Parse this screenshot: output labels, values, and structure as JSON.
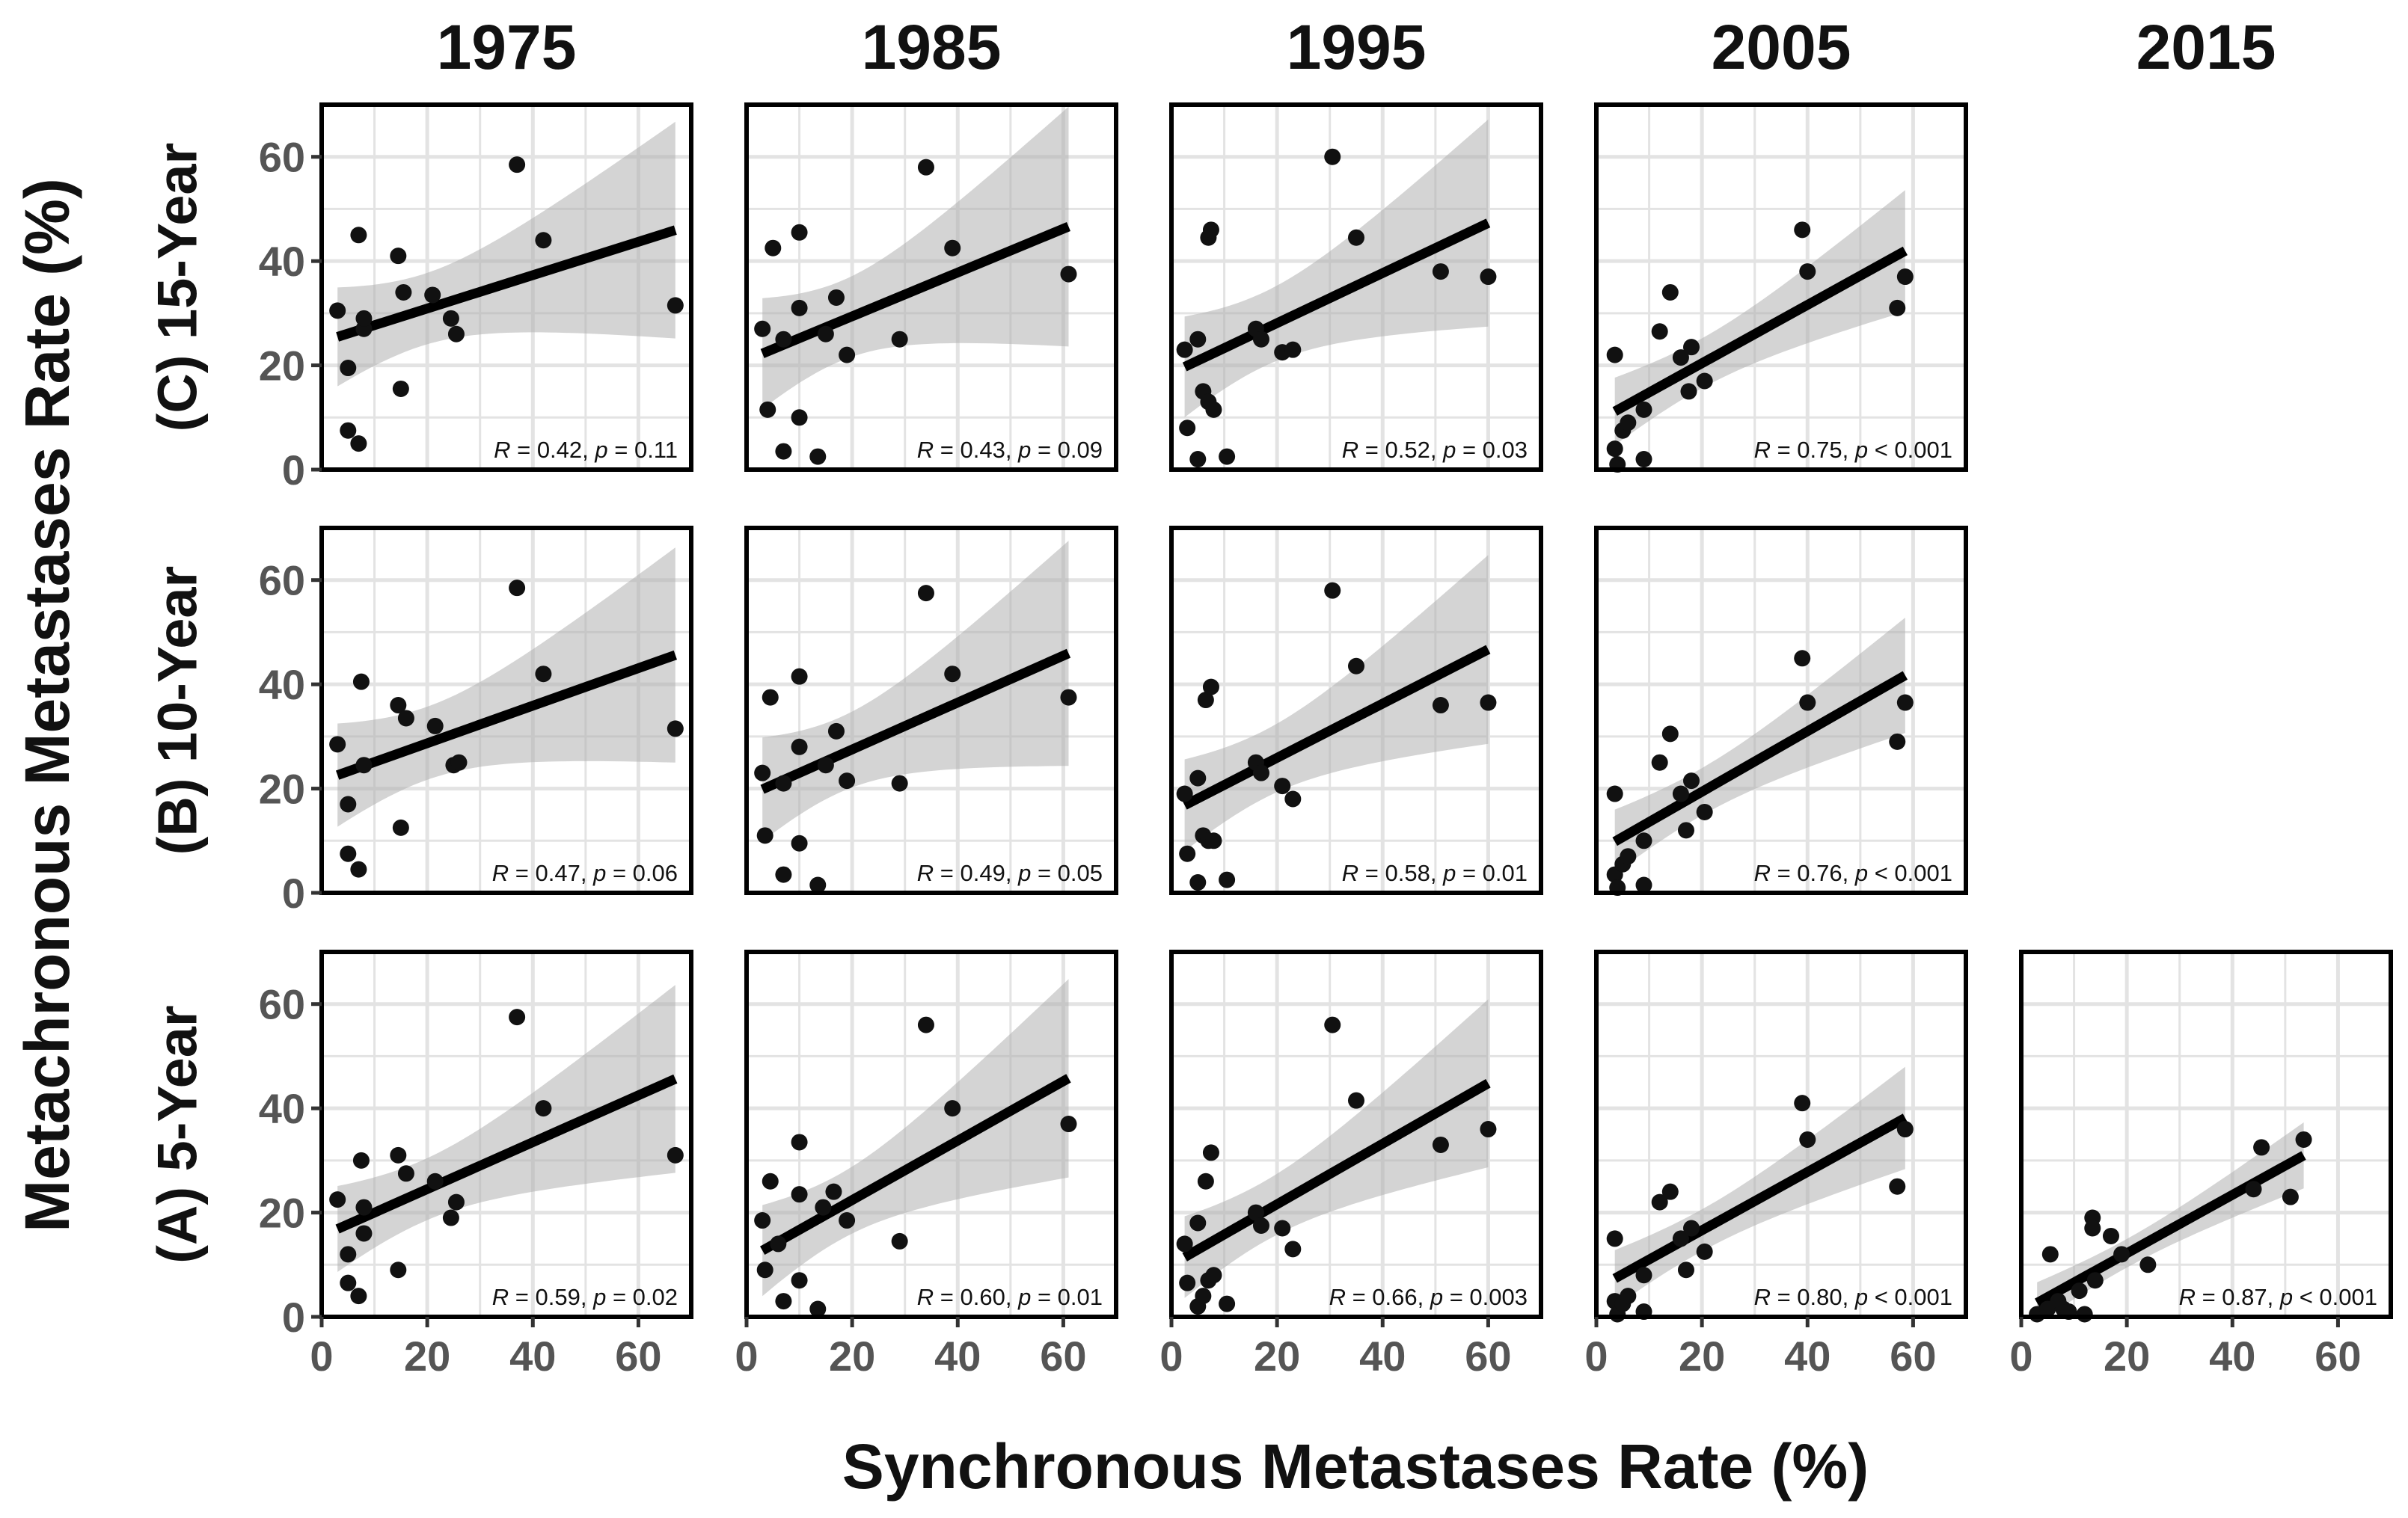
{
  "chart_data": {
    "type": "scatter",
    "xlabel": "Synchronous Metastases Rate (%)",
    "ylabel": "Metachronous Metastases Rate (%)",
    "xlim": [
      0,
      70
    ],
    "ylim": [
      0,
      70
    ],
    "x_ticks": [
      0,
      20,
      40,
      60
    ],
    "y_ticks": [
      0,
      20,
      40,
      60
    ],
    "x_tick_labels": [
      "0",
      "20",
      "40",
      "60"
    ],
    "y_tick_labels": [
      "0",
      "20",
      "40",
      "60"
    ],
    "grid": true,
    "fit": "linear regression with shaded confidence band",
    "columns": [
      "1975",
      "1985",
      "1995",
      "2005",
      "2015"
    ],
    "rows": [
      "(C) 15-Year",
      "(B) 10-Year",
      "(A) 5-Year"
    ],
    "panels": [
      {
        "row": "(C) 15-Year",
        "year": "1975",
        "r": "0.42",
        "p_op": "=",
        "p": "0.11",
        "fit": [
          24.5,
          0.32
        ],
        "points": [
          [
            3,
            30.5
          ],
          [
            5,
            7.5
          ],
          [
            5,
            19.5
          ],
          [
            7,
            5
          ],
          [
            7,
            45
          ],
          [
            8,
            27
          ],
          [
            8,
            29
          ],
          [
            14.5,
            41
          ],
          [
            15.5,
            34
          ],
          [
            15,
            15.5
          ],
          [
            21,
            33.5
          ],
          [
            24.5,
            29
          ],
          [
            25.5,
            26
          ],
          [
            42,
            44
          ],
          [
            37,
            58.5
          ],
          [
            67,
            31.5
          ]
        ]
      },
      {
        "row": "(C) 15-Year",
        "year": "1985",
        "r": "0.43",
        "p_op": "=",
        "p": "0.09",
        "fit": [
          21,
          0.42
        ],
        "points": [
          [
            3,
            27
          ],
          [
            4,
            11.5
          ],
          [
            5,
            42.5
          ],
          [
            7,
            25
          ],
          [
            7,
            3.5
          ],
          [
            10,
            45.5
          ],
          [
            10,
            31
          ],
          [
            10,
            10
          ],
          [
            13.5,
            2.5
          ],
          [
            15,
            26
          ],
          [
            17,
            33
          ],
          [
            19,
            22
          ],
          [
            29,
            25
          ],
          [
            34,
            58
          ],
          [
            39,
            42.5
          ],
          [
            61,
            37.5
          ]
        ]
      },
      {
        "row": "(C) 15-Year",
        "year": "1995",
        "r": "0.52",
        "p_op": "=",
        "p": "0.03",
        "fit": [
          18.5,
          0.48
        ],
        "points": [
          [
            2.5,
            23
          ],
          [
            3,
            8
          ],
          [
            5,
            25
          ],
          [
            5,
            2
          ],
          [
            6,
            15
          ],
          [
            7,
            44.5
          ],
          [
            7.5,
            46
          ],
          [
            7,
            13
          ],
          [
            8,
            11.5
          ],
          [
            10.5,
            2.5
          ],
          [
            16,
            27
          ],
          [
            17,
            25
          ],
          [
            21,
            22.5
          ],
          [
            23,
            23
          ],
          [
            30.5,
            60
          ],
          [
            35,
            44.5
          ],
          [
            51,
            38
          ],
          [
            60,
            37
          ]
        ]
      },
      {
        "row": "(C) 15-Year",
        "year": "2005",
        "r": "0.75",
        "p_op": "<",
        "p": "0.001",
        "fit": [
          9.2,
          0.56
        ],
        "points": [
          [
            3.5,
            22
          ],
          [
            3.5,
            4
          ],
          [
            4,
            1
          ],
          [
            5,
            7.5
          ],
          [
            6,
            9
          ],
          [
            9,
            2
          ],
          [
            9,
            11.5
          ],
          [
            12,
            26.5
          ],
          [
            14,
            34
          ],
          [
            16,
            21.5
          ],
          [
            17.5,
            15
          ],
          [
            18,
            23.5
          ],
          [
            20.5,
            17
          ],
          [
            39,
            46
          ],
          [
            40,
            38
          ],
          [
            57,
            31
          ],
          [
            58.5,
            37
          ]
        ]
      },
      {
        "row": "(B) 10-Year",
        "year": "1975",
        "r": "0.47",
        "p_op": "=",
        "p": "0.06",
        "fit": [
          21.5,
          0.36
        ],
        "points": [
          [
            3,
            28.5
          ],
          [
            5,
            17
          ],
          [
            5,
            7.5
          ],
          [
            7,
            4.5
          ],
          [
            7.5,
            40.5
          ],
          [
            8,
            24.5
          ],
          [
            14.5,
            36
          ],
          [
            15,
            12.5
          ],
          [
            16,
            33.5
          ],
          [
            21.5,
            32
          ],
          [
            25,
            24.5
          ],
          [
            26,
            25
          ],
          [
            42,
            42
          ],
          [
            37,
            58.5
          ],
          [
            67,
            31.5
          ]
        ]
      },
      {
        "row": "(B) 10-Year",
        "year": "1985",
        "r": "0.49",
        "p_op": "=",
        "p": "0.05",
        "fit": [
          18.5,
          0.45
        ],
        "points": [
          [
            3,
            23
          ],
          [
            3.5,
            11
          ],
          [
            4.5,
            37.5
          ],
          [
            7,
            3.5
          ],
          [
            7,
            21
          ],
          [
            10,
            41.5
          ],
          [
            10,
            28
          ],
          [
            10,
            9.5
          ],
          [
            13.5,
            1.5
          ],
          [
            15,
            24.5
          ],
          [
            17,
            31
          ],
          [
            19,
            21.5
          ],
          [
            29,
            21
          ],
          [
            34,
            57.5
          ],
          [
            39,
            42
          ],
          [
            61,
            37.5
          ]
        ]
      },
      {
        "row": "(B) 10-Year",
        "year": "1995",
        "r": "0.58",
        "p_op": "=",
        "p": "0.01",
        "fit": [
          15.5,
          0.52
        ],
        "points": [
          [
            2.5,
            19
          ],
          [
            3,
            7.5
          ],
          [
            5,
            22
          ],
          [
            5,
            2
          ],
          [
            6,
            11
          ],
          [
            6.5,
            37
          ],
          [
            7.5,
            39.5
          ],
          [
            7,
            10
          ],
          [
            8,
            10
          ],
          [
            10.5,
            2.5
          ],
          [
            16,
            25
          ],
          [
            17,
            23
          ],
          [
            21,
            20.5
          ],
          [
            23,
            18
          ],
          [
            30.5,
            58
          ],
          [
            35,
            43.5
          ],
          [
            51,
            36
          ],
          [
            60,
            36.5
          ]
        ]
      },
      {
        "row": "(B) 10-Year",
        "year": "2005",
        "r": "0.76",
        "p_op": "<",
        "p": "0.001",
        "fit": [
          7.8,
          0.58
        ],
        "points": [
          [
            3.5,
            19
          ],
          [
            3.5,
            3.5
          ],
          [
            4,
            1
          ],
          [
            5,
            5.5
          ],
          [
            6,
            7
          ],
          [
            9,
            1.5
          ],
          [
            9,
            10
          ],
          [
            12,
            25
          ],
          [
            14,
            30.5
          ],
          [
            16,
            19
          ],
          [
            17,
            12
          ],
          [
            18,
            21.5
          ],
          [
            20.5,
            15.5
          ],
          [
            39,
            45
          ],
          [
            40,
            36.5
          ],
          [
            57,
            29
          ],
          [
            58.5,
            36.5
          ]
        ]
      },
      {
        "row": "(A) 5-Year",
        "year": "1975",
        "r": "0.59",
        "p_op": "=",
        "p": "0.02",
        "fit": [
          15.5,
          0.45
        ],
        "points": [
          [
            3,
            22.5
          ],
          [
            5,
            6.5
          ],
          [
            5,
            12
          ],
          [
            7,
            4
          ],
          [
            7.5,
            30
          ],
          [
            8,
            16
          ],
          [
            8,
            21
          ],
          [
            14.5,
            31
          ],
          [
            14.5,
            9
          ],
          [
            16,
            27.5
          ],
          [
            21.5,
            26
          ],
          [
            24.5,
            19
          ],
          [
            25.5,
            22
          ],
          [
            42,
            40
          ],
          [
            37,
            57.5
          ],
          [
            67,
            31
          ]
        ]
      },
      {
        "row": "(A) 5-Year",
        "year": "1985",
        "r": "0.60",
        "p_op": "=",
        "p": "0.01",
        "fit": [
          11,
          0.57
        ],
        "points": [
          [
            3,
            18.5
          ],
          [
            3.5,
            9
          ],
          [
            4.5,
            26
          ],
          [
            6,
            14
          ],
          [
            7,
            3
          ],
          [
            10,
            33.5
          ],
          [
            10,
            23.5
          ],
          [
            10,
            7
          ],
          [
            13.5,
            1.5
          ],
          [
            14.5,
            21
          ],
          [
            16.5,
            24
          ],
          [
            19,
            18.5
          ],
          [
            29,
            14.5
          ],
          [
            34,
            56
          ],
          [
            39,
            40
          ],
          [
            61,
            37
          ]
        ]
      },
      {
        "row": "(A) 5-Year",
        "year": "1995",
        "r": "0.66",
        "p_op": "=",
        "p": "0.003",
        "fit": [
          10,
          0.58
        ],
        "points": [
          [
            2.5,
            14
          ],
          [
            3,
            6.5
          ],
          [
            5,
            18
          ],
          [
            5,
            2
          ],
          [
            6,
            4
          ],
          [
            6.5,
            26
          ],
          [
            7.5,
            31.5
          ],
          [
            7,
            7
          ],
          [
            8,
            8
          ],
          [
            10.5,
            2.5
          ],
          [
            16,
            20
          ],
          [
            17,
            17.5
          ],
          [
            21,
            17
          ],
          [
            23,
            13
          ],
          [
            30.5,
            56
          ],
          [
            35,
            41.5
          ],
          [
            51,
            33
          ],
          [
            60,
            36
          ]
        ]
      },
      {
        "row": "(A) 5-Year",
        "year": "2005",
        "r": "0.80",
        "p_op": "<",
        "p": "0.001",
        "fit": [
          5.4,
          0.56
        ],
        "points": [
          [
            3.5,
            15
          ],
          [
            3.5,
            3
          ],
          [
            4,
            0.5
          ],
          [
            5,
            2.5
          ],
          [
            6,
            4
          ],
          [
            9,
            1
          ],
          [
            9,
            8
          ],
          [
            12,
            22
          ],
          [
            14,
            24
          ],
          [
            16,
            15
          ],
          [
            17,
            9
          ],
          [
            18,
            17
          ],
          [
            20.5,
            12.5
          ],
          [
            39,
            41
          ],
          [
            40,
            34
          ],
          [
            57,
            25
          ],
          [
            58.5,
            36
          ]
        ]
      },
      {
        "row": "(A) 5-Year",
        "year": "2015",
        "r": "0.87",
        "p_op": "<",
        "p": "0.001",
        "fit": [
          1.0,
          0.56
        ],
        "points": [
          [
            3,
            0.5
          ],
          [
            5,
            1.5
          ],
          [
            5.5,
            12
          ],
          [
            7,
            3
          ],
          [
            8,
            1.5
          ],
          [
            9,
            1
          ],
          [
            11,
            5
          ],
          [
            12,
            0.5
          ],
          [
            13.5,
            19
          ],
          [
            13.5,
            17
          ],
          [
            14,
            7
          ],
          [
            17,
            15.5
          ],
          [
            19,
            12
          ],
          [
            24,
            10
          ],
          [
            44,
            24.5
          ],
          [
            45.5,
            32.5
          ],
          [
            51,
            23
          ],
          [
            53.5,
            34
          ]
        ]
      }
    ]
  }
}
